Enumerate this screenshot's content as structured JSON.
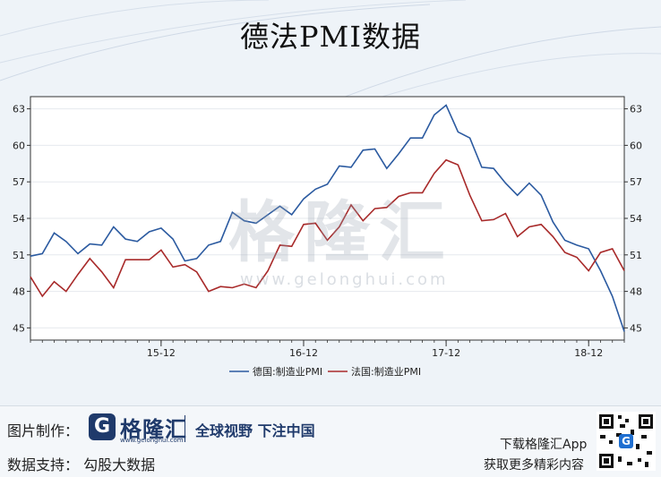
{
  "title": "德法PMI数据",
  "chart_data": {
    "type": "line",
    "title": "德法PMI数据",
    "xlabel": "",
    "ylabel": "",
    "ylim": [
      44,
      64
    ],
    "y_ticks": [
      45,
      48,
      51,
      54,
      57,
      60,
      63
    ],
    "x_tick_labels": [
      "15-12",
      "16-12",
      "17-12",
      "18-12"
    ],
    "x_start": "2015-01",
    "x_end": "2019-03",
    "grid": true,
    "legend": "bottom",
    "series": [
      {
        "name": "德国:制造业PMI",
        "color": "#2b5aa0",
        "values": [
          50.9,
          51.1,
          52.8,
          52.1,
          51.1,
          51.9,
          51.8,
          53.3,
          52.3,
          52.1,
          52.9,
          53.2,
          52.3,
          50.5,
          50.7,
          51.8,
          52.1,
          54.5,
          53.8,
          53.6,
          54.3,
          55.0,
          54.3,
          55.6,
          56.4,
          56.8,
          58.3,
          58.2,
          59.6,
          59.7,
          58.1,
          59.3,
          60.6,
          60.6,
          62.5,
          63.3,
          61.1,
          60.6,
          58.2,
          58.1,
          56.9,
          55.9,
          56.9,
          55.9,
          53.7,
          52.2,
          51.8,
          51.5,
          49.7,
          47.6,
          44.7
        ]
      },
      {
        "name": "法国:制造业PMI",
        "color": "#a82a2a",
        "values": [
          49.2,
          47.6,
          48.8,
          48.0,
          49.4,
          50.7,
          49.6,
          48.3,
          50.6,
          50.6,
          50.6,
          51.4,
          50.0,
          50.2,
          49.6,
          48.0,
          48.4,
          48.3,
          48.6,
          48.3,
          49.7,
          51.8,
          51.7,
          53.5,
          53.6,
          52.2,
          53.3,
          55.1,
          53.8,
          54.8,
          54.9,
          55.8,
          56.1,
          56.1,
          57.7,
          58.8,
          58.4,
          55.9,
          53.8,
          53.9,
          54.4,
          52.5,
          53.3,
          53.5,
          52.5,
          51.2,
          50.8,
          49.7,
          51.2,
          51.5,
          49.7
        ]
      }
    ]
  },
  "watermark": {
    "cn": "格隆汇",
    "url": "www.gelonghui.com"
  },
  "footer": {
    "made_by_label": "图片制作：",
    "logo_letter": "G",
    "brand": "格隆汇",
    "brand_url": "www.gelonghui.com",
    "slogan": "全球视野 下注中国",
    "data_support": "数据支持：  勾股大数据",
    "download": "下载格隆汇App",
    "more": "获取更多精彩内容"
  }
}
